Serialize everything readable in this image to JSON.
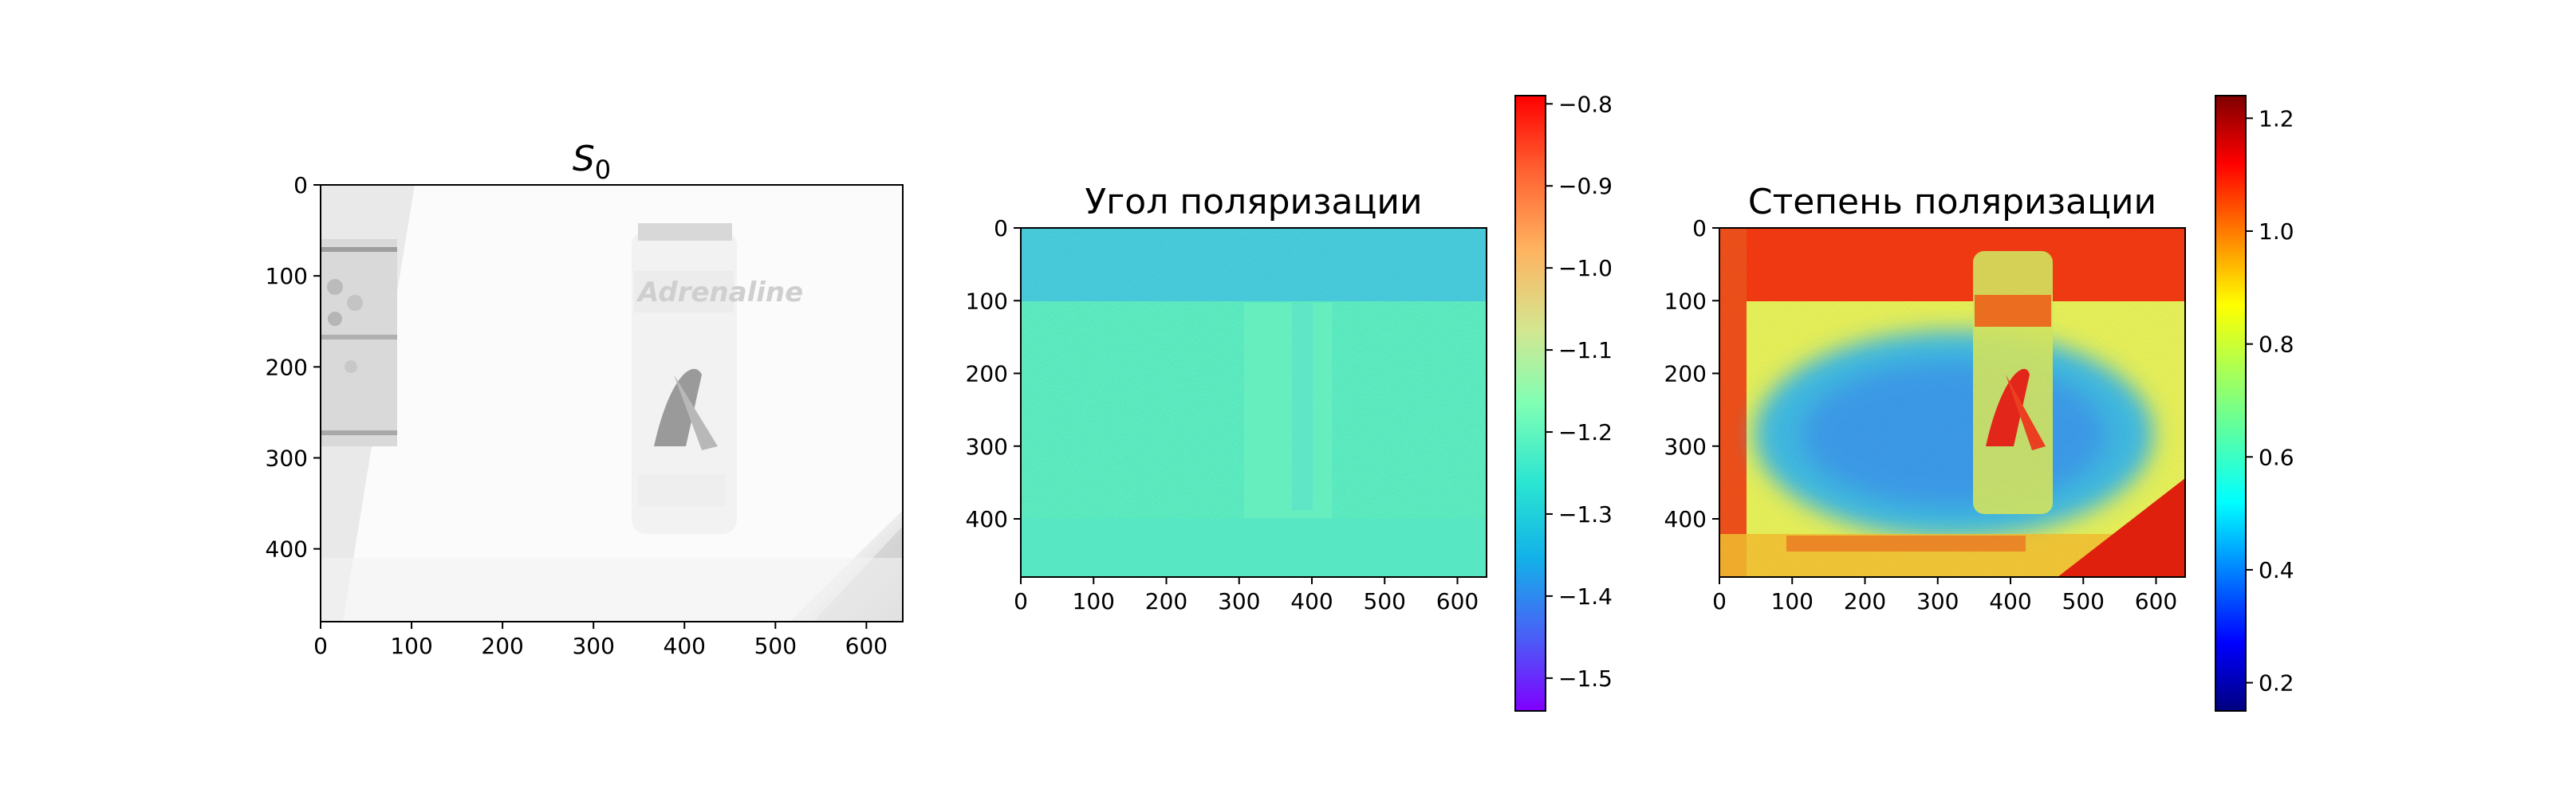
{
  "chart_data": [
    {
      "type": "heatmap",
      "title": "S",
      "title_subscript": "0",
      "colormap": "gray",
      "x_ticks": [
        0,
        100,
        200,
        300,
        400,
        500,
        600
      ],
      "y_ticks": [
        0,
        100,
        200,
        300,
        400
      ],
      "xlim": [
        0,
        640
      ],
      "ylim": [
        480,
        0
      ],
      "image_description_values": {
        "background_level": "near-white",
        "features": [
          "can with label 'Adrenaline'",
          "shelf edge at left",
          "shadow corner at bottom-right"
        ]
      },
      "colorbar": null
    },
    {
      "type": "heatmap",
      "title": "Угол поляризации",
      "colormap": "rainbow",
      "x_ticks": [
        0,
        100,
        200,
        300,
        400,
        500,
        600
      ],
      "y_ticks": [
        0,
        100,
        200,
        300,
        400
      ],
      "xlim": [
        0,
        640
      ],
      "ylim": [
        480,
        0
      ],
      "colorbar": {
        "min": -1.54,
        "max": -0.79,
        "ticks": [
          -0.8,
          -0.9,
          -1.0,
          -1.1,
          -1.2,
          -1.3,
          -1.4,
          -1.5
        ],
        "tick_labels": [
          "−0.8",
          "−0.9",
          "−1.0",
          "−1.1",
          "−1.2",
          "−1.3",
          "−1.4",
          "−1.5"
        ]
      },
      "dominant_value": -1.22,
      "top_band_value": -1.27
    },
    {
      "type": "heatmap",
      "title": "Степень поляризации",
      "colormap": "jet",
      "x_ticks": [
        0,
        100,
        200,
        300,
        400,
        500,
        600
      ],
      "y_ticks": [
        0,
        100,
        200,
        300,
        400
      ],
      "xlim": [
        0,
        640
      ],
      "ylim": [
        480,
        0
      ],
      "colorbar": {
        "min": 0.15,
        "max": 1.24,
        "ticks": [
          0.2,
          0.4,
          0.6,
          0.8,
          1.0,
          1.2
        ],
        "tick_labels": [
          "0.2",
          "0.4",
          "0.6",
          "0.8",
          "1.0",
          "1.2"
        ]
      },
      "regions": {
        "top_band": 1.1,
        "left_edge": 1.05,
        "center_background": 0.55,
        "outer_background": 0.8,
        "bottom_right_corner": 1.15
      }
    }
  ]
}
